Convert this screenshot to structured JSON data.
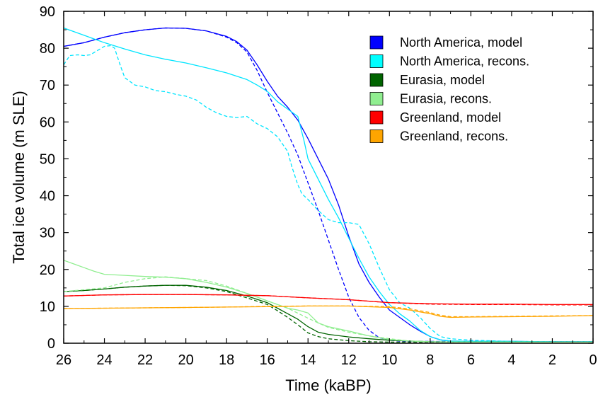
{
  "chart_data": {
    "type": "line",
    "title": "",
    "xlabel": "Time (kaBP)",
    "ylabel": "Total ice volume (m SLE)",
    "xlim": [
      26,
      0
    ],
    "ylim": [
      0,
      90
    ],
    "x_ticks": [
      26,
      24,
      22,
      20,
      18,
      16,
      14,
      12,
      10,
      8,
      6,
      4,
      2,
      0
    ],
    "y_ticks": [
      0,
      10,
      20,
      30,
      40,
      50,
      60,
      70,
      80,
      90
    ],
    "grid": false,
    "legend_position": "top-right",
    "series": [
      {
        "name": "North America, model",
        "color": "#0000ff",
        "style": "solid",
        "x": [
          26,
          25,
          24,
          23,
          22,
          21,
          20,
          19,
          18,
          17.5,
          17,
          16.5,
          16,
          15.5,
          15,
          14.5,
          14,
          13.5,
          13,
          12.5,
          12,
          11.5,
          11,
          10.5,
          10,
          9.5,
          9,
          8.5,
          8,
          7.5,
          7,
          6,
          4,
          2,
          0
        ],
        "y": [
          80.5,
          81.5,
          83,
          84.2,
          85,
          85.5,
          85.4,
          84.7,
          83.2,
          81.8,
          79.5,
          75.5,
          71,
          67,
          64,
          60.5,
          55.5,
          50,
          44.5,
          37.5,
          29,
          21.5,
          16.5,
          12.5,
          9,
          7,
          5,
          3.3,
          1.8,
          0.9,
          0.6,
          0.5,
          0.5,
          0.4,
          0.4
        ]
      },
      {
        "name": "North America, model (dashed)",
        "color": "#0000ff",
        "style": "dashed",
        "x": [
          26,
          25,
          24,
          23,
          22,
          21,
          20,
          19,
          18,
          17.5,
          17,
          16.5,
          16,
          15.5,
          15,
          14.5,
          14,
          13.5,
          13,
          12.5,
          12,
          11.5,
          11,
          10.5,
          10,
          9.5,
          9,
          8,
          6,
          4,
          2,
          0
        ],
        "y": [
          80.5,
          81.5,
          83,
          84.2,
          85,
          85.5,
          85.4,
          84.7,
          83,
          81.5,
          79,
          74,
          68,
          62.5,
          57,
          51,
          43.5,
          36,
          28,
          20,
          12.5,
          7,
          3.5,
          1.5,
          0.8,
          0.6,
          0.5,
          0.5,
          0.4,
          0.4,
          0.4,
          0.4
        ]
      },
      {
        "name": "North America, recons.",
        "color": "#00e5ff",
        "style": "solid",
        "x": [
          26,
          25,
          24,
          23,
          22,
          21,
          20,
          19,
          18,
          17,
          16.5,
          16,
          15.5,
          15,
          14.5,
          14.2,
          14,
          13.5,
          13,
          12.5,
          12,
          11.5,
          11,
          10.5,
          10,
          9.5,
          9,
          8.5,
          8,
          7.5,
          7,
          6,
          4,
          2,
          0
        ],
        "y": [
          85.5,
          83.5,
          81.5,
          79.8,
          78.2,
          77,
          76,
          74.7,
          73.3,
          71.5,
          70,
          68.3,
          65.5,
          63.5,
          61.5,
          55,
          50,
          44.5,
          39,
          34,
          28.5,
          23,
          18,
          14,
          10.5,
          8,
          6,
          3.5,
          1.8,
          0.9,
          0.6,
          0.5,
          0.5,
          0.4,
          0.4
        ]
      },
      {
        "name": "North America, recons. (dashed)",
        "color": "#00e5ff",
        "style": "dashed",
        "x": [
          26,
          25.7,
          25.3,
          25,
          24.7,
          24.3,
          24,
          23.7,
          23.5,
          23.2,
          23,
          22.5,
          22,
          21.5,
          21,
          20.5,
          20,
          19.5,
          19,
          18.5,
          18,
          17.5,
          17,
          16.5,
          16.2,
          16,
          15.5,
          15,
          14.8,
          14.5,
          14.3,
          14,
          13.5,
          13,
          12.5,
          12,
          11.5,
          11,
          10.5,
          10,
          9.5,
          9,
          8.5,
          8,
          7.5,
          7,
          6,
          4,
          2,
          0
        ],
        "y": [
          75.5,
          78,
          78.2,
          78,
          78.2,
          79.5,
          80.5,
          80.7,
          80,
          75,
          72,
          70,
          69.5,
          68.5,
          68.2,
          67.5,
          67,
          66,
          64,
          62.5,
          61.5,
          61.2,
          61.5,
          59.5,
          58.7,
          58.2,
          56,
          52,
          48,
          43,
          40.5,
          39,
          36,
          33.5,
          32.7,
          32.7,
          32.2,
          27,
          20.5,
          14.5,
          11,
          9.5,
          7,
          4,
          1.8,
          1.2,
          0.8,
          0.5,
          0.4,
          0.4
        ]
      },
      {
        "name": "Eurasia, model",
        "color": "#006400",
        "style": "solid",
        "x": [
          26,
          25,
          24,
          23,
          22,
          21,
          20,
          19,
          18,
          17,
          16,
          15.5,
          15,
          14.5,
          14,
          13.5,
          13,
          12,
          11,
          10,
          9,
          8,
          6,
          4,
          2,
          0
        ],
        "y": [
          14,
          14.3,
          14.7,
          15.2,
          15.5,
          15.7,
          15.7,
          15.2,
          14.3,
          12.8,
          11,
          9.5,
          8,
          6.5,
          4.5,
          3,
          2.4,
          1.7,
          1.2,
          0.8,
          0.6,
          0.4,
          0.3,
          0.3,
          0.3,
          0.3
        ]
      },
      {
        "name": "Eurasia, model (dashed)",
        "color": "#006400",
        "style": "dashed",
        "x": [
          26,
          25,
          24,
          23,
          22,
          21,
          20,
          19,
          18,
          17,
          16,
          15.5,
          15,
          14.5,
          14,
          13.5,
          13,
          12,
          11,
          10,
          9,
          8,
          6,
          4,
          2,
          0
        ],
        "y": [
          14,
          14.3,
          14.7,
          15.2,
          15.5,
          15.7,
          15.6,
          15,
          14,
          12.3,
          10.5,
          8.8,
          7,
          5,
          2.8,
          1.8,
          1.2,
          0.7,
          0.4,
          0.3,
          0.3,
          0.3,
          0.3,
          0.3,
          0.3,
          0.3
        ]
      },
      {
        "name": "Eurasia, recons.",
        "color": "#90ee90",
        "style": "solid",
        "x": [
          26,
          25.5,
          25,
          24.5,
          24,
          23,
          22,
          21,
          20,
          19,
          18,
          17,
          16,
          15.5,
          15,
          14.5,
          14,
          13.5,
          13,
          12,
          11,
          10,
          9,
          8,
          6,
          4,
          2,
          0
        ],
        "y": [
          22.5,
          21.5,
          20.5,
          19.5,
          18.7,
          18.4,
          18.1,
          17.9,
          17.5,
          16.5,
          15.2,
          13.5,
          11.5,
          10.5,
          9.5,
          9,
          8.2,
          5.5,
          4.5,
          3.3,
          2,
          1,
          0.6,
          0.4,
          0.3,
          0.3,
          0.3,
          0.3
        ]
      },
      {
        "name": "Eurasia, recons. (dashed)",
        "color": "#90ee90",
        "style": "dashed",
        "x": [
          26,
          25,
          24,
          23,
          22,
          21,
          20,
          19,
          18,
          17,
          16,
          15,
          14,
          13.5,
          13,
          12,
          11,
          10,
          9,
          8,
          6,
          4,
          2,
          0
        ],
        "y": [
          14,
          14.5,
          15,
          16.5,
          17.5,
          18,
          17.5,
          17,
          15.5,
          13.5,
          11.5,
          9.5,
          6.8,
          5.5,
          4.3,
          3,
          2,
          1.2,
          0.6,
          0.4,
          0.3,
          0.3,
          0.3,
          0.3
        ]
      },
      {
        "name": "Greenland, model",
        "color": "#ff0000",
        "style": "solid",
        "x": [
          26,
          24,
          22,
          20,
          18,
          16,
          14,
          12,
          10,
          8,
          6,
          4,
          2,
          0
        ],
        "y": [
          12.8,
          13.1,
          13.2,
          13.2,
          13.1,
          12.9,
          12.3,
          11.8,
          11,
          10.7,
          10.6,
          10.6,
          10.5,
          10.5
        ]
      },
      {
        "name": "Greenland, model (dashed)",
        "color": "#ff0000",
        "style": "dashed",
        "x": [
          26,
          24,
          22,
          20,
          18,
          16,
          14,
          12,
          10,
          8,
          6,
          4,
          2,
          0
        ],
        "y": [
          12.8,
          13.1,
          13.2,
          13.2,
          13.1,
          12.9,
          12.3,
          11.8,
          11,
          10.6,
          10.5,
          10.5,
          10.4,
          10.4
        ]
      },
      {
        "name": "Greenland, recons.",
        "color": "#ffa500",
        "style": "solid",
        "x": [
          26,
          24,
          22,
          20,
          18,
          16,
          14,
          12,
          10,
          9,
          8,
          7.5,
          7,
          6,
          4,
          2,
          0
        ],
        "y": [
          9.4,
          9.5,
          9.6,
          9.7,
          9.8,
          9.9,
          10.1,
          10.1,
          9.7,
          9,
          8,
          7.3,
          7,
          7.1,
          7.2,
          7.3,
          7.5
        ]
      },
      {
        "name": "Greenland, recons. (dashed)",
        "color": "#ffa500",
        "style": "dashed",
        "x": [
          26,
          24,
          22,
          20,
          18,
          16,
          14,
          12,
          10,
          9,
          8,
          7.5,
          7,
          6,
          4,
          2,
          0
        ],
        "y": [
          9.4,
          9.5,
          9.6,
          9.7,
          9.8,
          10,
          10.1,
          10.1,
          9.9,
          9.3,
          8.3,
          7.6,
          7.2,
          7.2,
          7.3,
          7.4,
          7.5
        ]
      }
    ],
    "legend": [
      {
        "label": "North America, model",
        "color": "#0000ff"
      },
      {
        "label": "North America, recons.",
        "color": "#00ffff"
      },
      {
        "label": "Eurasia, model",
        "color": "#006400"
      },
      {
        "label": "Eurasia, recons.",
        "color": "#90ee90"
      },
      {
        "label": "Greenland, model",
        "color": "#ff0000"
      },
      {
        "label": "Greenland, recons.",
        "color": "#ffa500"
      }
    ]
  }
}
